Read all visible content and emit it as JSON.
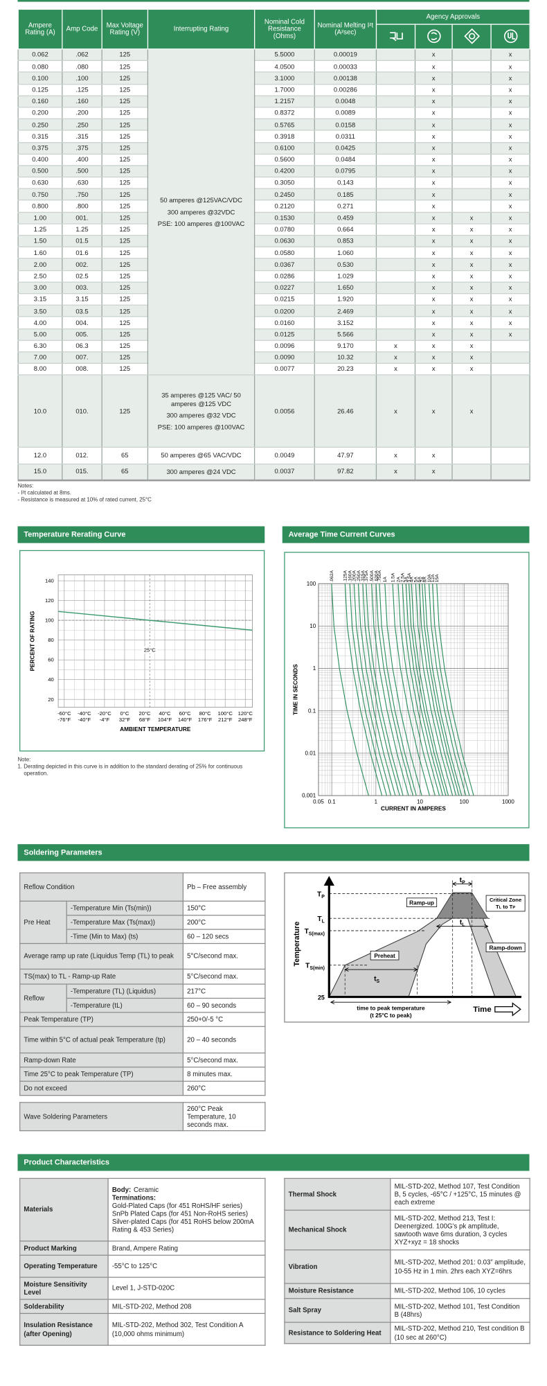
{
  "main_table": {
    "headers": [
      "Ampere Rating (A)",
      "Amp Code",
      "Max Voltage Rating (V)",
      "Interrupting Rating",
      "Nominal Cold Resistance (Ohms)",
      "Nominal Melting I²t (A²sec)"
    ],
    "agency_header": "Agency Approvals",
    "interrupting": [
      [
        "50 amperes @125VAC/VDC",
        "300 amperes @32VDC",
        "PSE: 100 amperes @100VAC"
      ],
      [
        "35 amperes @125 VAC/ 50 amperes @125 VDC",
        "300 amperes @32 VDC",
        "PSE: 100 amperes @100VAC"
      ],
      [
        "50 amperes @65 VAC/VDC"
      ],
      [
        "300 amperes @24 VDC"
      ]
    ],
    "rows": [
      [
        "0.062",
        ".062",
        "125",
        "5.5000",
        "0.00019",
        null,
        "x",
        null,
        "x"
      ],
      [
        "0.080",
        ".080",
        "125",
        "4.0500",
        "0.00033",
        null,
        "x",
        null,
        "x"
      ],
      [
        "0.100",
        ".100",
        "125",
        "3.1000",
        "0.00138",
        null,
        "x",
        null,
        "x"
      ],
      [
        "0.125",
        ".125",
        "125",
        "1.7000",
        "0.00286",
        null,
        "x",
        null,
        "x"
      ],
      [
        "0.160",
        ".160",
        "125",
        "1.2157",
        "0.0048",
        null,
        "x",
        null,
        "x"
      ],
      [
        "0.200",
        ".200",
        "125",
        "0.8372",
        "0.0089",
        null,
        "x",
        null,
        "x"
      ],
      [
        "0.250",
        ".250",
        "125",
        "0.5765",
        "0.0158",
        null,
        "x",
        null,
        "x"
      ],
      [
        "0.315",
        ".315",
        "125",
        "0.3918",
        "0.0311",
        null,
        "x",
        null,
        "x"
      ],
      [
        "0.375",
        ".375",
        "125",
        "0.6100",
        "0.0425",
        null,
        "x",
        null,
        "x"
      ],
      [
        "0.400",
        ".400",
        "125",
        "0.5600",
        "0.0484",
        null,
        "x",
        null,
        "x"
      ],
      [
        "0.500",
        ".500",
        "125",
        "0.4200",
        "0.0795",
        null,
        "x",
        null,
        "x"
      ],
      [
        "0.630",
        ".630",
        "125",
        "0.3050",
        "0.143",
        null,
        "x",
        null,
        "x"
      ],
      [
        "0.750",
        ".750",
        "125",
        "0.2450",
        "0.185",
        null,
        "x",
        null,
        "x"
      ],
      [
        "0.800",
        ".800",
        "125",
        "0.2120",
        "0.271",
        null,
        "x",
        null,
        "x"
      ],
      [
        "1.00",
        "001.",
        "125",
        "0.1530",
        "0.459",
        null,
        "x",
        "x",
        "x"
      ],
      [
        "1.25",
        "1.25",
        "125",
        "0.0780",
        "0.664",
        null,
        "x",
        "x",
        "x"
      ],
      [
        "1.50",
        "01.5",
        "125",
        "0.0630",
        "0.853",
        null,
        "x",
        "x",
        "x"
      ],
      [
        "1.60",
        "01.6",
        "125",
        "0.0580",
        "1.060",
        null,
        "x",
        "x",
        "x"
      ],
      [
        "2.00",
        "002.",
        "125",
        "0.0367",
        "0.530",
        null,
        "x",
        "x",
        "x"
      ],
      [
        "2.50",
        "02.5",
        "125",
        "0.0286",
        "1.029",
        null,
        "x",
        "x",
        "x"
      ],
      [
        "3.00",
        "003.",
        "125",
        "0.0227",
        "1.650",
        null,
        "x",
        "x",
        "x"
      ],
      [
        "3.15",
        "3.15",
        "125",
        "0.0215",
        "1.920",
        null,
        "x",
        "x",
        "x"
      ],
      [
        "3.50",
        "03.5",
        "125",
        "0.0200",
        "2.469",
        null,
        "x",
        "x",
        "x"
      ],
      [
        "4.00",
        "004.",
        "125",
        "0.0160",
        "3.152",
        null,
        "x",
        "x",
        "x"
      ],
      [
        "5.00",
        "005.",
        "125",
        "0.0125",
        "5.566",
        null,
        "x",
        "x",
        "x"
      ],
      [
        "6.30",
        "06.3",
        "125",
        "0.0096",
        "9.170",
        "x",
        "x",
        "x",
        null
      ],
      [
        "7.00",
        "007.",
        "125",
        "0.0090",
        "10.32",
        "x",
        "x",
        "x",
        null
      ],
      [
        "8.00",
        "008.",
        "125",
        "0.0077",
        "20.23",
        "x",
        "x",
        "x",
        null
      ],
      [
        "10.0",
        "010.",
        "125",
        "0.0056",
        "26.46",
        "x",
        "x",
        "x",
        null
      ],
      [
        "12.0",
        "012.",
        "65",
        "0.0049",
        "47.97",
        "x",
        "x",
        null,
        null
      ],
      [
        "15.0",
        "015.",
        "65",
        "0.0037",
        "97.82",
        "x",
        "x",
        null,
        null
      ]
    ]
  },
  "notes": {
    "title": "Notes:",
    "items": [
      "- I²t calculated at 8ms.",
      "- Resistance is measured at 10% of rated current, 25°C"
    ]
  },
  "rerating_chart": {
    "type": "line",
    "title": "Temperature Rerating Curve",
    "xlabel": "AMBIENT TEMPERATURE",
    "ylabel": "PERCENT OF RATING",
    "x": [
      -66,
      25,
      127
    ],
    "values": [
      109,
      100,
      90
    ],
    "color": "#3a9a6e",
    "xlim": [
      -66,
      127
    ],
    "ylim": [
      12,
      146
    ],
    "xticks": [
      {
        "value": -60,
        "label": "-60°C"
      },
      {
        "value": -40,
        "label": "-40°C"
      },
      {
        "value": -20,
        "label": "-20°C"
      },
      {
        "value": 0,
        "label": "0°C"
      },
      {
        "value": 20,
        "label": "20°C"
      },
      {
        "value": 40,
        "label": "40°C"
      },
      {
        "value": 60,
        "label": "60°C"
      },
      {
        "value": 80,
        "label": "80°C"
      },
      {
        "value": 100,
        "label": "100°C"
      },
      {
        "value": 120,
        "label": "120°C"
      }
    ],
    "xticks_secondary": [
      "-76°F",
      "-40°F",
      "-4°F",
      "32°F",
      "68°F",
      "104°F",
      "140°F",
      "176°F",
      "212°F",
      "248°F"
    ],
    "yticks": [
      20,
      40,
      60,
      80,
      100,
      120,
      140
    ],
    "grid": true,
    "reference_lines": {
      "x": 25,
      "y": 100
    },
    "annotation": "25°C",
    "note": {
      "title": "Note:",
      "text": "1. Derating depicted in this curve is in addition to the standard derating of 25% for continuous operation."
    }
  },
  "tcc_chart": {
    "type": "line",
    "title": "Average Time Current Curves",
    "xlabel": "CURRENT IN AMPERES",
    "ylabel": "TIME IN SECONDS",
    "log_x": true,
    "log_y": true,
    "color": "#2e8f5c",
    "xlim": [
      0.05,
      1000
    ],
    "ylim": [
      0.001,
      100
    ],
    "xticks": [
      0.05,
      0.1,
      1,
      10,
      100,
      1000
    ],
    "yticks": [
      0.001,
      0.01,
      0.1,
      1,
      10,
      100
    ],
    "series": [
      {
        "name": ".062A",
        "x": [
          0.099,
          0.112,
          0.149,
          0.223,
          0.372,
          0.682
        ],
        "values": [
          100,
          10,
          1,
          0.1,
          0.01,
          0.001
        ]
      },
      {
        "name": ".125A",
        "x": [
          0.2,
          0.225,
          0.3,
          0.45,
          0.75,
          1.375
        ],
        "values": [
          100,
          10,
          1,
          0.1,
          0.01,
          0.001
        ]
      },
      {
        "name": ".160A",
        "x": [
          0.256,
          0.288,
          0.384,
          0.576,
          0.96,
          1.76
        ],
        "values": [
          100,
          10,
          1,
          0.1,
          0.01,
          0.001
        ]
      },
      {
        "name": ".200A",
        "x": [
          0.32,
          0.36,
          0.48,
          0.72,
          1.2,
          2.2
        ],
        "values": [
          100,
          10,
          1,
          0.1,
          0.01,
          0.001
        ]
      },
      {
        "name": ".250A",
        "x": [
          0.4,
          0.45,
          0.6,
          0.9,
          1.5,
          2.75
        ],
        "values": [
          100,
          10,
          1,
          0.1,
          0.01,
          0.001
        ]
      },
      {
        "name": ".315A",
        "x": [
          0.504,
          0.567,
          0.756,
          1.134,
          1.89,
          3.465
        ],
        "values": [
          100,
          10,
          1,
          0.1,
          0.01,
          0.001
        ]
      },
      {
        "name": ".375A",
        "x": [
          0.6,
          0.675,
          0.9,
          1.35,
          2.25,
          4.125
        ],
        "values": [
          100,
          10,
          1,
          0.1,
          0.01,
          0.001
        ]
      },
      {
        "name": ".500A",
        "x": [
          0.8,
          0.9,
          1.2,
          1.8,
          3,
          5.5
        ],
        "values": [
          100,
          10,
          1,
          0.1,
          0.01,
          0.001
        ]
      },
      {
        "name": ".630A",
        "x": [
          1.008,
          1.134,
          1.512,
          2.268,
          3.78,
          6.93
        ],
        "values": [
          100,
          10,
          1,
          0.1,
          0.01,
          0.001
        ]
      },
      {
        "name": ".750A",
        "x": [
          1.2,
          1.35,
          1.8,
          2.7,
          4.5,
          8.25
        ],
        "values": [
          100,
          10,
          1,
          0.1,
          0.01,
          0.001
        ]
      },
      {
        "name": "1A",
        "x": [
          1.6,
          1.8,
          2.4,
          3.6,
          6,
          11
        ],
        "values": [
          100,
          10,
          1,
          0.1,
          0.01,
          0.001
        ]
      },
      {
        "name": "1.5A",
        "x": [
          2.4,
          2.7,
          3.6,
          5.4,
          9,
          16.5
        ],
        "values": [
          100,
          10,
          1,
          0.1,
          0.01,
          0.001
        ]
      },
      {
        "name": "2A",
        "x": [
          3.2,
          3.6,
          4.8,
          7.2,
          12,
          22
        ],
        "values": [
          100,
          10,
          1,
          0.1,
          0.01,
          0.001
        ]
      },
      {
        "name": "2.5A",
        "x": [
          4,
          4.5,
          6,
          9,
          15,
          27.5
        ],
        "values": [
          100,
          10,
          1,
          0.1,
          0.01,
          0.001
        ]
      },
      {
        "name": "3A",
        "x": [
          4.8,
          5.4,
          7.2,
          10.8,
          18,
          33
        ],
        "values": [
          100,
          10,
          1,
          0.1,
          0.01,
          0.001
        ]
      },
      {
        "name": "3.5A",
        "x": [
          5.6,
          6.3,
          8.4,
          12.6,
          21,
          38.5
        ],
        "values": [
          100,
          10,
          1,
          0.1,
          0.01,
          0.001
        ]
      },
      {
        "name": "4A",
        "x": [
          6.4,
          7.2,
          9.6,
          14.4,
          24,
          44
        ],
        "values": [
          100,
          10,
          1,
          0.1,
          0.01,
          0.001
        ]
      },
      {
        "name": "5A",
        "x": [
          8,
          9,
          12,
          18,
          30,
          55
        ],
        "values": [
          100,
          10,
          1,
          0.1,
          0.01,
          0.001
        ]
      },
      {
        "name": "6A",
        "x": [
          9.6,
          10.8,
          14.4,
          21.6,
          36,
          66
        ],
        "values": [
          100,
          10,
          1,
          0.1,
          0.01,
          0.001
        ]
      },
      {
        "name": "7A",
        "x": [
          11.2,
          12.6,
          16.8,
          25.2,
          42,
          77
        ],
        "values": [
          100,
          10,
          1,
          0.1,
          0.01,
          0.001
        ]
      },
      {
        "name": "8A",
        "x": [
          12.8,
          14.4,
          19.2,
          28.8,
          48,
          88
        ],
        "values": [
          100,
          10,
          1,
          0.1,
          0.01,
          0.001
        ]
      },
      {
        "name": "10A",
        "x": [
          16,
          18,
          24,
          36,
          60,
          110
        ],
        "values": [
          100,
          10,
          1,
          0.1,
          0.01,
          0.001
        ]
      },
      {
        "name": "12A",
        "x": [
          19.2,
          21.6,
          28.8,
          43.2,
          72,
          132
        ],
        "values": [
          100,
          10,
          1,
          0.1,
          0.01,
          0.001
        ]
      },
      {
        "name": "15A",
        "x": [
          24,
          27,
          36,
          54,
          90,
          165
        ],
        "values": [
          100,
          10,
          1,
          0.1,
          0.01,
          0.001
        ]
      }
    ]
  },
  "soldering": {
    "title": "Soldering Parameters",
    "rows": [
      {
        "label": "Reflow Condition",
        "value": "Pb – Free assembly"
      },
      {
        "group": "Pre Heat",
        "items": [
          {
            "label": "-Temperature Min (Ts(min))",
            "value": "150°C"
          },
          {
            "label": "-Temperature Max (Ts(max))",
            "value": "200°C"
          },
          {
            "label": "-Time (Min to Max) (ts)",
            "value": "60 – 120 secs"
          }
        ]
      },
      {
        "label": "Average ramp up rate (Liquidus Temp (TL) to peak",
        "value": "5°C/second max."
      },
      {
        "label": "TS(max) to TL - Ramp-up Rate",
        "value": "5°C/second max."
      },
      {
        "group": "Reflow",
        "items": [
          {
            "label": "-Temperature (TL) (Liquidus)",
            "value": "217°C"
          },
          {
            "label": "-Temperature (tL)",
            "value": "60 – 90 seconds"
          }
        ]
      },
      {
        "label": "Peak Temperature (TP)",
        "value": "250+0/-5 °C"
      },
      {
        "label": "Time within 5°C of actual peak Temperature (tp)",
        "value": "20 – 40 seconds"
      },
      {
        "label": "Ramp-down Rate",
        "value": "5°C/second max."
      },
      {
        "label": "Time 25°C to peak Temperature (TP)",
        "value": "8 minutes max."
      },
      {
        "label": "Do not exceed",
        "value": "260°C"
      }
    ],
    "wave": {
      "label": "Wave Soldering Parameters",
      "value": "260°C Peak Temperature, 10 seconds max."
    }
  },
  "profile": {
    "y_axis": "Temperature",
    "x_axis": "Time",
    "levels": [
      {
        "main": "T",
        "sub": "P"
      },
      {
        "main": "T",
        "sub": "L"
      },
      {
        "main": "T",
        "sub": "S(max)"
      },
      {
        "main": "T",
        "sub": "S(min)"
      }
    ],
    "base": "25",
    "tp": {
      "main": "t",
      "sub": "P"
    },
    "tl": {
      "main": "t",
      "sub": "L"
    },
    "ts": {
      "main": "t",
      "sub": "S"
    },
    "ramp_up": "Ramp-up",
    "ramp_down": "Ramp-down",
    "preheat": "Preheat",
    "critical_zone": "Critical Zone",
    "critical_range": {
      "a": "T",
      "a_sub": "L",
      "mid": " to ",
      "b": "T",
      "b_sub": "P"
    },
    "time_to_peak": [
      "time to peak temperature",
      "(t 25°C to peak)"
    ]
  },
  "product": {
    "title": "Product Characteristics",
    "materials": {
      "label": "Materials",
      "body_label": "Body:",
      "body": "Ceramic",
      "terminations_label": "Terminations:",
      "lines": [
        "Gold-Plated Caps (for 451 RoHS/HF series)",
        "SnPb Plated Caps (for 451 Non-RoHS series)",
        "Silver-plated Caps (for 451 RoHS below 200mA Rating & 453 Series)"
      ]
    },
    "left": [
      {
        "label": "Product Marking",
        "value": "Brand, Ampere Rating"
      },
      {
        "label": "Operating Temperature",
        "value": "-55°C to 125°C"
      },
      {
        "label": "Moisture Sensitivity Level",
        "value": "Level 1, J-STD-020C"
      },
      {
        "label": "Solderability",
        "value": "MIL-STD-202, Method 208"
      },
      {
        "label": "Insulation Resistance (after Opening)",
        "value": "MIL-STD-202, Method 302, Test Condition A (10,000 ohms minimum)"
      }
    ],
    "right": [
      {
        "label": "Thermal Shock",
        "value": "MIL-STD-202, Method 107, Test Condition B, 5 cycles, -65°C / +125°C, 15 minutes @ each extreme"
      },
      {
        "label": "Mechanical Shock",
        "value": "MIL-STD-202, Method 213, Test I: Deenergized. 100G’s pk amplitude, sawtooth wave 6ms duration, 3 cycles XYZ+xyz = 18 shocks"
      },
      {
        "label": "Vibration",
        "value": "MIL-STD-202, Method 201: 0.03” amplitude, 10-55 Hz in 1 min. 2hrs each XYZ=6hrs"
      },
      {
        "label": "Moisture Resistance",
        "value": "MIL-STD-202, Method 106, 10 cycles"
      },
      {
        "label": "Salt Spray",
        "value": "MIL-STD-202, Method 101, Test Condition B (48hrs)"
      },
      {
        "label": "Resistance to Soldering Heat",
        "value": "MIL-STD-202, Method 210, Test condition B (10 sec at 260°C)"
      }
    ]
  }
}
